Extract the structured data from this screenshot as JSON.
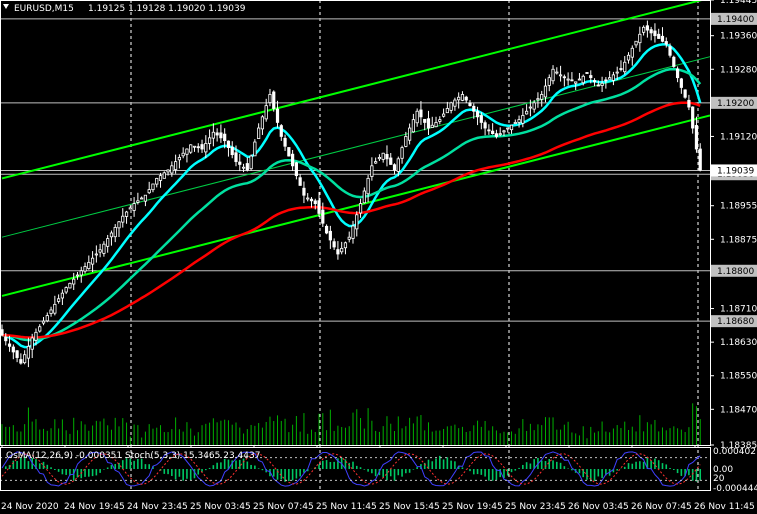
{
  "chart_data": {
    "type": "candlestick",
    "header": {
      "symbol_tf": "EURUSD,M15",
      "ohlc": "1.19125 1.19128 1.19020 1.19039"
    },
    "price_axis": {
      "ticks": [
        "1.19445",
        "1.19360",
        "1.19280",
        "1.19120",
        "1.18955",
        "1.18875",
        "1.18710",
        "1.18630",
        "1.18550",
        "1.18470",
        "1.18385"
      ],
      "ylim": [
        1.18385,
        1.19445
      ]
    },
    "level_labels": [
      {
        "price": 1.194,
        "label": "1.19400"
      },
      {
        "price": 1.192,
        "label": "1.19200"
      },
      {
        "price": 1.1903,
        "label": "1.19030"
      },
      {
        "price": 1.188,
        "label": "1.18800"
      },
      {
        "price": 1.1868,
        "label": "1.18680"
      }
    ],
    "current_price": {
      "price": 1.19039,
      "label": "1.19039"
    },
    "time_axis": [
      "24 Nov 2020",
      "24 Nov 19:45",
      "24 Nov 23:45",
      "25 Nov 03:45",
      "25 Nov 07:45",
      "25 Nov 11:45",
      "25 Nov 15:45",
      "25 Nov 19:45",
      "25 Nov 23:45",
      "26 Nov 03:45",
      "26 Nov 07:45",
      "26 Nov 11:45"
    ],
    "period_separators": [
      "24 Nov 23:45",
      "25 Nov 11:45",
      "25 Nov 23:45",
      "26 Nov 11:45"
    ],
    "candles_close_path": [
      [
        0,
        1.1866
      ],
      [
        3,
        1.1862
      ],
      [
        6,
        1.1858
      ],
      [
        9,
        1.1864
      ],
      [
        12,
        1.1868
      ],
      [
        15,
        1.1872
      ],
      [
        18,
        1.1876
      ],
      [
        21,
        1.1879
      ],
      [
        24,
        1.1882
      ],
      [
        27,
        1.1885
      ],
      [
        30,
        1.1889
      ],
      [
        33,
        1.1893
      ],
      [
        36,
        1.1896
      ],
      [
        39,
        1.1898
      ],
      [
        42,
        1.1902
      ],
      [
        45,
        1.1904
      ],
      [
        48,
        1.1907
      ],
      [
        51,
        1.191
      ],
      [
        54,
        1.1909
      ],
      [
        57,
        1.1913
      ],
      [
        60,
        1.1911
      ],
      [
        63,
        1.1906
      ],
      [
        66,
        1.1904
      ],
      [
        69,
        1.1914
      ],
      [
        72,
        1.1922
      ],
      [
        75,
        1.1912
      ],
      [
        78,
        1.1905
      ],
      [
        81,
        1.1898
      ],
      [
        84,
        1.1896
      ],
      [
        87,
        1.1889
      ],
      [
        90,
        1.1884
      ],
      [
        93,
        1.1888
      ],
      [
        96,
        1.1896
      ],
      [
        99,
        1.1905
      ],
      [
        102,
        1.1908
      ],
      [
        105,
        1.1904
      ],
      [
        108,
        1.1912
      ],
      [
        111,
        1.1918
      ],
      [
        114,
        1.1914
      ],
      [
        117,
        1.1916
      ],
      [
        120,
        1.192
      ],
      [
        123,
        1.1922
      ],
      [
        126,
        1.1918
      ],
      [
        129,
        1.1914
      ],
      [
        132,
        1.1912
      ],
      [
        135,
        1.1914
      ],
      [
        138,
        1.1916
      ],
      [
        141,
        1.1919
      ],
      [
        144,
        1.1922
      ],
      [
        147,
        1.1928
      ],
      [
        150,
        1.1926
      ],
      [
        153,
        1.1925
      ],
      [
        156,
        1.1927
      ],
      [
        159,
        1.1924
      ],
      [
        162,
        1.1926
      ],
      [
        165,
        1.1928
      ],
      [
        168,
        1.1933
      ],
      [
        171,
        1.1938
      ],
      [
        174,
        1.1936
      ],
      [
        177,
        1.1934
      ],
      [
        180,
        1.1926
      ],
      [
        183,
        1.1919
      ],
      [
        186,
        1.1904
      ]
    ],
    "series": [
      {
        "name": "",
        "color": "#00ffff"
      },
      {
        "name": "",
        "color": "#00e0a0"
      },
      {
        "name": "",
        "color": "#ff0000"
      },
      {
        "name": "",
        "color": "#00ff00"
      },
      {
        "name": "",
        "color": "#00cc44"
      }
    ],
    "indicator": {
      "header": "OsMA(12,26,9) -0.000351 Stoch(5,3,3) 15.3465 23.4437",
      "ticks": [
        "0.000402",
        "0.00",
        "20",
        "-0.000444"
      ]
    }
  }
}
